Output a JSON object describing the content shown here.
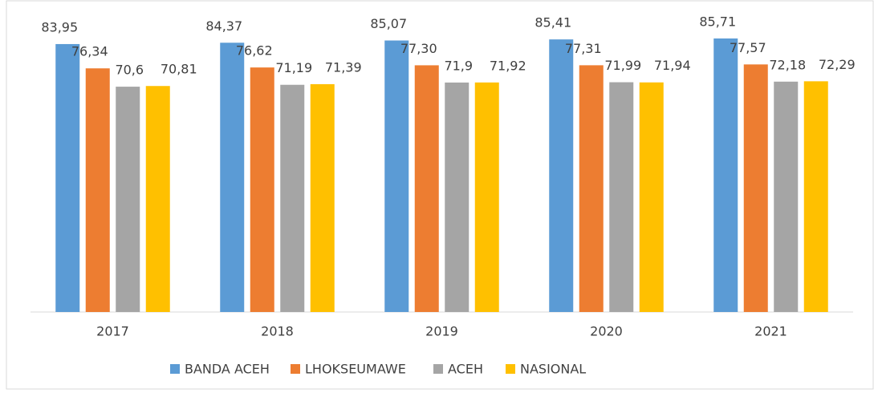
{
  "chart_data": {
    "type": "bar",
    "categories": [
      "2017",
      "2018",
      "2019",
      "2020",
      "2021"
    ],
    "series": [
      {
        "name": "BANDA ACEH",
        "color": "#5b9bd5",
        "values": [
          83.95,
          84.37,
          85.07,
          85.41,
          85.71
        ],
        "value_labels": [
          "83,95",
          "84,37",
          "85,07",
          "85,41",
          "85,71"
        ]
      },
      {
        "name": "LHOKSEUMAWE",
        "color": "#ed7d31",
        "values": [
          76.34,
          76.62,
          77.3,
          77.31,
          77.57
        ],
        "value_labels": [
          "76,34",
          "76,62",
          "77,30",
          "77,31",
          "77,57"
        ]
      },
      {
        "name": "ACEH",
        "color": "#a5a5a5",
        "values": [
          70.6,
          71.19,
          71.9,
          71.99,
          72.18
        ],
        "value_labels": [
          "70,6",
          "71,19",
          "71,9",
          "71,99",
          "72,18"
        ]
      },
      {
        "name": "NASIONAL",
        "color": "#ffc000",
        "values": [
          70.81,
          71.39,
          71.92,
          71.94,
          72.29
        ],
        "value_labels": [
          "70,81",
          "71,39",
          "71,92",
          "71,94",
          "72,29"
        ]
      }
    ],
    "ylim": [
      0,
      96
    ],
    "legend": "bottom"
  }
}
